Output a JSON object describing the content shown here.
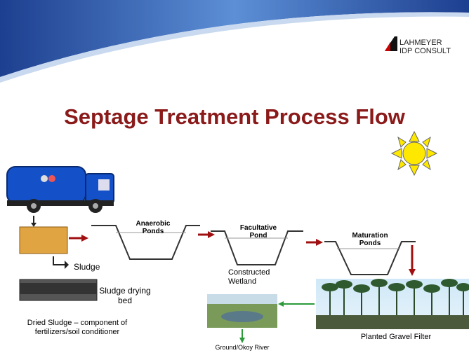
{
  "logo": {
    "line1": "LAHMEYER",
    "line2": "IDP CONSULT"
  },
  "title": "Septage Treatment Process Flow",
  "ponds": [
    {
      "lines": [
        "Anaerobic",
        "Ponds"
      ]
    },
    {
      "lines": [
        "Facultative",
        "Pond"
      ]
    },
    {
      "lines": [
        "Maturation",
        "Ponds"
      ]
    }
  ],
  "sludge": "Sludge",
  "drying_bed": {
    "lines": [
      "Sludge drying",
      "bed"
    ]
  },
  "dried_sludge": {
    "lines": [
      "Dried Sludge – component of",
      "fertilizers/soil conditioner"
    ]
  },
  "wetland": {
    "lines": [
      "Constructed",
      "Wetland"
    ]
  },
  "river": "Ground/Okoy River",
  "gravel_filter": "Planted Gravel Filter"
}
